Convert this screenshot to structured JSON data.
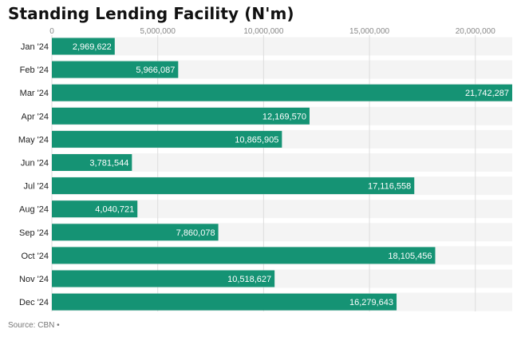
{
  "title": "Standing Lending Facility (N'm)",
  "source": "Source: CBN •",
  "colors": {
    "bar": "#159374",
    "band": "#f4f4f4",
    "grid": "#dddddd"
  },
  "chart_data": {
    "type": "bar",
    "orientation": "horizontal",
    "title": "Standing Lending Facility (N'm)",
    "categories": [
      "Jan '24",
      "Feb '24",
      "Mar '24",
      "Apr '24",
      "May '24",
      "Jun '24",
      "Jul '24",
      "Aug '24",
      "Sep '24",
      "Oct '24",
      "Nov '24",
      "Dec '24"
    ],
    "values": [
      2969622,
      5966087,
      21742287,
      12169570,
      10865905,
      3781544,
      17116558,
      4040721,
      7860078,
      18105456,
      10518627,
      16279643
    ],
    "value_labels": [
      "2,969,622",
      "5,966,087",
      "21,742,287",
      "12,169,570",
      "10,865,905",
      "3,781,544",
      "17,116,558",
      "4,040,721",
      "7,860,078",
      "18,105,456",
      "10,518,627",
      "16,279,643"
    ],
    "x_ticks": [
      0,
      5000000,
      10000000,
      15000000,
      20000000
    ],
    "x_tick_labels": [
      "0",
      "5,000,000",
      "10,000,000",
      "15,000,000",
      "20,000,000"
    ],
    "xlim": [
      0,
      21742287
    ],
    "grid": true,
    "axis_position": "top"
  }
}
